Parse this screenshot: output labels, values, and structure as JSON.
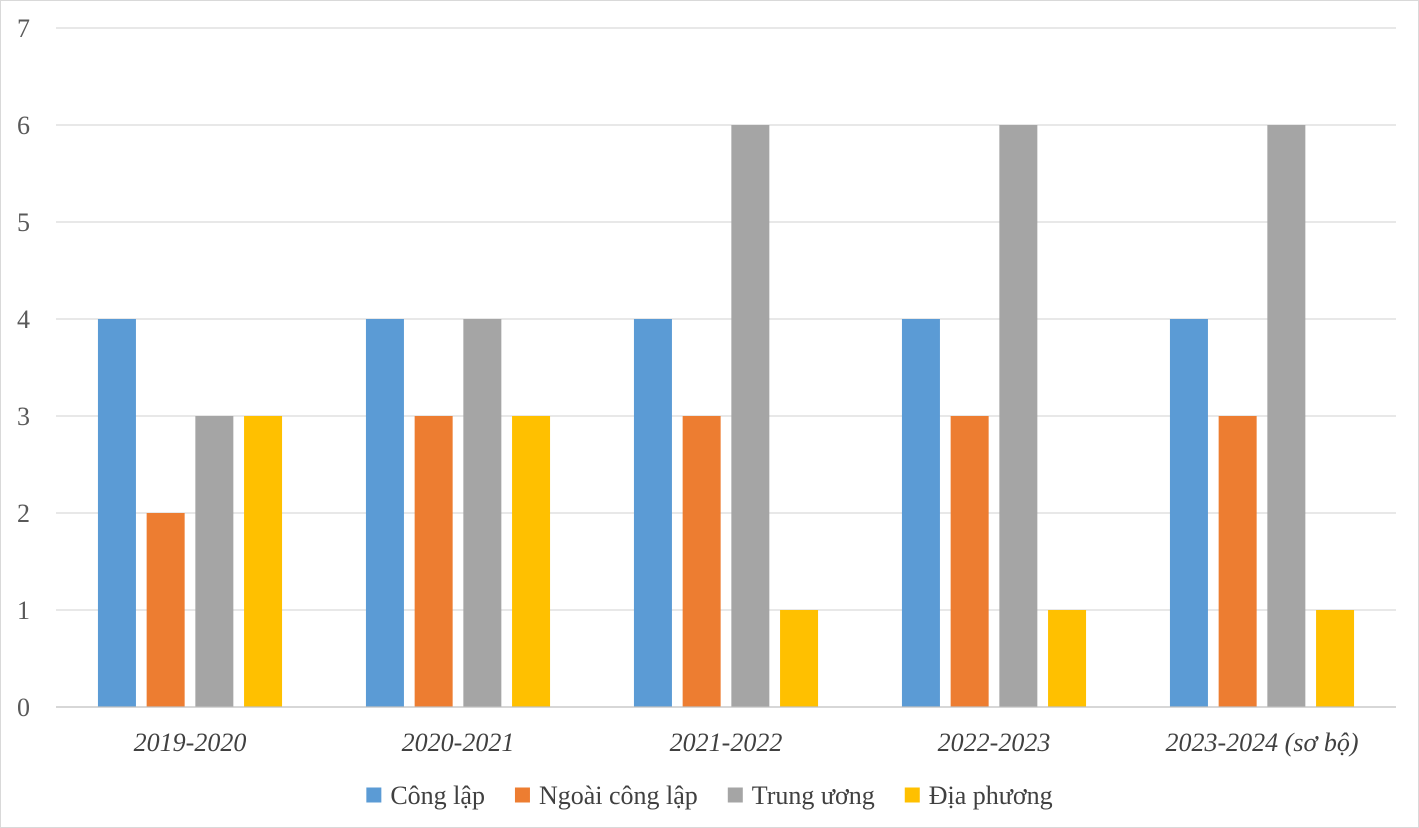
{
  "chart_data": {
    "type": "bar",
    "title": "",
    "xlabel": "",
    "ylabel": "",
    "categories": [
      "2019-2020",
      "2020-2021",
      "2021-2022",
      "2022-2023",
      "2023-2024 (sơ bộ)"
    ],
    "series": [
      {
        "name": "Công lập",
        "color": "#5b9bd5",
        "values": [
          4,
          4,
          4,
          4,
          4
        ]
      },
      {
        "name": "Ngoài công lập",
        "color": "#ed7d31",
        "values": [
          2,
          3,
          3,
          3,
          3
        ]
      },
      {
        "name": "Trung ương",
        "color": "#a5a5a5",
        "values": [
          3,
          4,
          6,
          6,
          6
        ]
      },
      {
        "name": "Địa phương",
        "color": "#ffc000",
        "values": [
          3,
          3,
          1,
          1,
          1
        ]
      }
    ],
    "ylim": [
      0,
      7
    ],
    "yticks": [
      0,
      1,
      2,
      3,
      4,
      5,
      6,
      7
    ],
    "grid": true,
    "legend_position": "bottom"
  }
}
